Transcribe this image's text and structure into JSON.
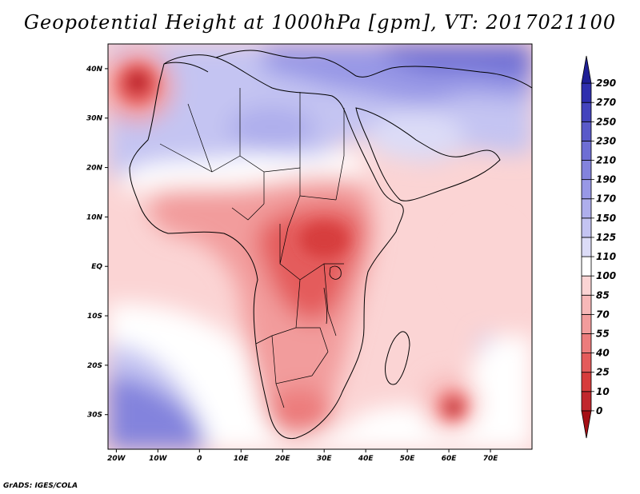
{
  "title": "Geopotential Height at 1000hPa [gpm], VT: 2017021100",
  "credit": "GrADS: IGES/COLA",
  "map": {
    "region": "Africa",
    "lat_range": [
      -37,
      45
    ],
    "lon_range": [
      -22,
      80
    ],
    "lat_ticks": [
      "40N",
      "30N",
      "20N",
      "10N",
      "EQ",
      "10S",
      "20S",
      "30S"
    ],
    "lon_ticks": [
      "20W",
      "10W",
      "0",
      "10E",
      "20E",
      "30E",
      "40E",
      "50E",
      "60E",
      "70E"
    ]
  },
  "colorbar": {
    "levels": [
      "0",
      "10",
      "25",
      "40",
      "55",
      "70",
      "85",
      "100",
      "110",
      "125",
      "150",
      "170",
      "190",
      "210",
      "230",
      "250",
      "270",
      "290"
    ],
    "colors": [
      "#a50f15",
      "#c1272d",
      "#d73c3c",
      "#e45b5b",
      "#ec7c7c",
      "#f29c9c",
      "#f7b8b8",
      "#fbd4d4",
      "#ffffff",
      "#dcdcf7",
      "#c4c4f2",
      "#aeaeec",
      "#9898e6",
      "#8383dd",
      "#6e6ed4",
      "#5959c9",
      "#4444bd",
      "#2f2fae",
      "#1f1f96"
    ]
  },
  "palette": {
    "ocean_base": "#fbd4d4",
    "high_center": "#c1272d",
    "low_center": "#4444bd",
    "coast": "#000000"
  }
}
